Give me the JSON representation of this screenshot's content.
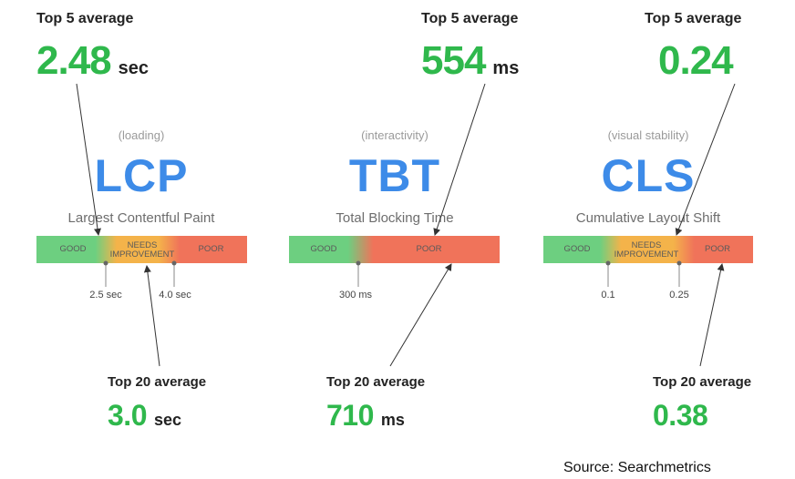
{
  "colors": {
    "good": "#6dcf80",
    "needs_improvement": "#f4b34a",
    "poor": "#f0735a",
    "value_green": "#2fb84c",
    "acronym_blue": "#3d8be8"
  },
  "panels": [
    {
      "top5_label": "Top 5 average",
      "top5_value": "2.48",
      "top5_unit": "sec",
      "category": "(loading)",
      "acronym": "LCP",
      "name": "Largest Contentful Paint",
      "segments": [
        "GOOD",
        "NEEDS IMPROVEMENT",
        "POOR"
      ],
      "thresholds": [
        "2.5 sec",
        "4.0 sec"
      ],
      "top20_label": "Top 20 average",
      "top20_value": "3.0",
      "top20_unit": "sec"
    },
    {
      "top5_label": "Top 5 average",
      "top5_value": "554",
      "top5_unit": "ms",
      "category": "(interactivity)",
      "acronym": "TBT",
      "name": "Total Blocking Time",
      "segments": [
        "GOOD",
        "POOR"
      ],
      "thresholds": [
        "300 ms"
      ],
      "top20_label": "Top 20 average",
      "top20_value": "710",
      "top20_unit": "ms"
    },
    {
      "top5_label": "Top 5 average",
      "top5_value": "0.24",
      "top5_unit": "",
      "category": "(visual stability)",
      "acronym": "CLS",
      "name": "Cumulative Layout Shift",
      "segments": [
        "GOOD",
        "NEEDS IMPROVEMENT",
        "POOR"
      ],
      "thresholds": [
        "0.1",
        "0.25"
      ],
      "top20_label": "Top 20 average",
      "top20_value": "0.38",
      "top20_unit": ""
    }
  ],
  "source": "Source: Searchmetrics"
}
